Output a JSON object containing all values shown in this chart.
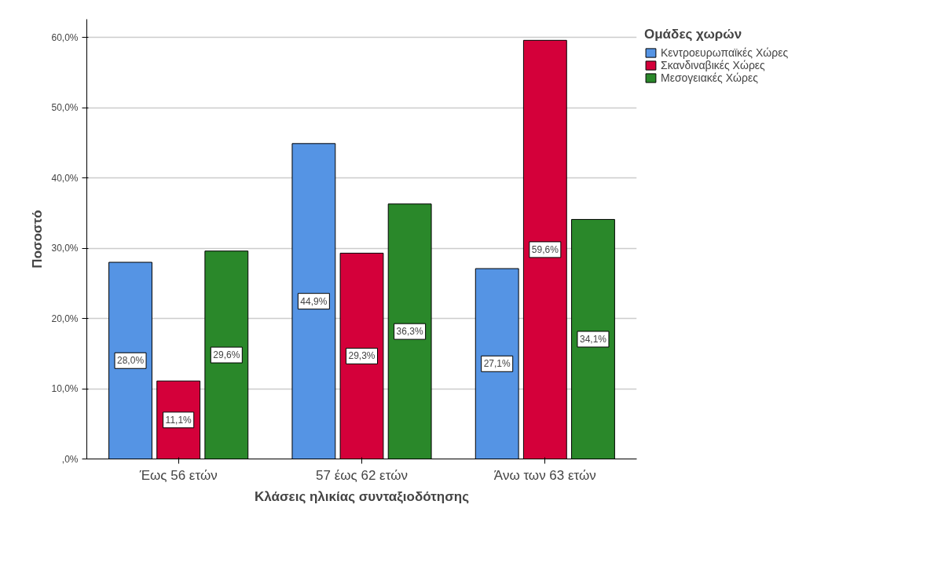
{
  "chart_data": {
    "type": "bar",
    "xlabel": "Κλάσεις ηλικίας συνταξιοδότησης",
    "ylabel": "Ποσοστό",
    "legend_title": "Ομάδες χωρών",
    "categories": [
      "Έως 56 ετών",
      "57 έως 62 ετών",
      "Άνω των 63 ετών"
    ],
    "series": [
      {
        "name": "Κεντροευρωπαϊκές Χώρες",
        "color": "#5594e4",
        "values": [
          28.0,
          44.9,
          27.1
        ],
        "value_labels": [
          "28,0%",
          "44,9%",
          "27,1%"
        ]
      },
      {
        "name": "Σκανδιναβικές Χώρες",
        "color": "#d4003a",
        "values": [
          11.1,
          29.3,
          59.6
        ],
        "value_labels": [
          "11,1%",
          "29,3%",
          "59,6%"
        ]
      },
      {
        "name": "Μεσογειακές Χώρες",
        "color": "#2a882a",
        "values": [
          29.6,
          36.3,
          34.1
        ],
        "value_labels": [
          "29,6%",
          "36,3%",
          "34,1%"
        ]
      }
    ],
    "ylim": [
      0,
      62.6
    ],
    "yticks": [
      {
        "value": 0,
        "label": ",0%"
      },
      {
        "value": 10,
        "label": "10,0%"
      },
      {
        "value": 20,
        "label": "20,0%"
      },
      {
        "value": 30,
        "label": "30,0%"
      },
      {
        "value": 40,
        "label": "40,0%"
      },
      {
        "value": 50,
        "label": "50,0%"
      },
      {
        "value": 60,
        "label": "60,0%"
      }
    ],
    "grid": "y",
    "legend": "top right"
  }
}
